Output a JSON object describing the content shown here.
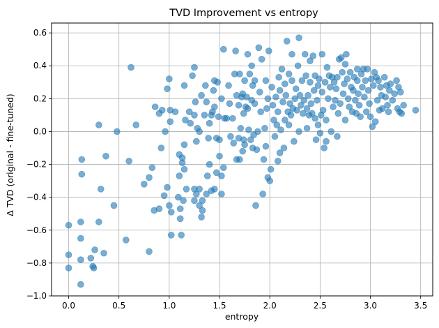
{
  "chart_data": {
    "type": "scatter",
    "title": "TVD Improvement vs entropy",
    "xlabel": "entropy",
    "ylabel": "Δ TVD (original - fine-tuned)",
    "xlim": [
      -0.17,
      3.62
    ],
    "ylim": [
      -1.0,
      0.66
    ],
    "xticks": [
      0.0,
      0.5,
      1.0,
      1.5,
      2.0,
      2.5,
      3.0,
      3.5
    ],
    "xtick_labels": [
      "0.0",
      "0.5",
      "1.0",
      "1.5",
      "2.0",
      "2.5",
      "3.0",
      "3.5"
    ],
    "yticks": [
      -1.0,
      -0.8,
      -0.6,
      -0.4,
      -0.2,
      0.0,
      0.2,
      0.4,
      0.6
    ],
    "ytick_labels": [
      "−1.0",
      "−0.8",
      "−0.6",
      "−0.4",
      "−0.2",
      "0.0",
      "0.2",
      "0.4",
      "0.6"
    ],
    "grid": true,
    "marker_color": "#1f77b4",
    "marker_alpha": 0.6,
    "points": [
      [
        0.0,
        -0.57
      ],
      [
        0.0,
        -0.75
      ],
      [
        0.0,
        -0.83
      ],
      [
        0.12,
        -0.93
      ],
      [
        0.12,
        -0.78
      ],
      [
        0.12,
        -0.65
      ],
      [
        0.12,
        -0.55
      ],
      [
        0.13,
        -0.26
      ],
      [
        0.13,
        -0.17
      ],
      [
        0.22,
        -0.77
      ],
      [
        0.24,
        -0.82
      ],
      [
        0.25,
        -0.83
      ],
      [
        0.26,
        -0.72
      ],
      [
        0.3,
        -0.55
      ],
      [
        0.3,
        0.04
      ],
      [
        0.32,
        -0.35
      ],
      [
        0.35,
        -0.74
      ],
      [
        0.37,
        -0.15
      ],
      [
        0.45,
        -0.45
      ],
      [
        0.48,
        0.0
      ],
      [
        0.57,
        -0.66
      ],
      [
        0.6,
        -0.18
      ],
      [
        0.62,
        0.39
      ],
      [
        0.67,
        0.04
      ],
      [
        0.75,
        -0.32
      ],
      [
        0.8,
        -0.28
      ],
      [
        0.8,
        -0.73
      ],
      [
        0.83,
        -0.22
      ],
      [
        0.85,
        -0.48
      ],
      [
        0.86,
        0.15
      ],
      [
        0.9,
        -0.47
      ],
      [
        0.9,
        0.11
      ],
      [
        0.92,
        -0.1
      ],
      [
        0.93,
        0.13
      ],
      [
        0.95,
        -0.39
      ],
      [
        0.96,
        0.0
      ],
      [
        0.98,
        -0.34
      ],
      [
        0.98,
        0.26
      ],
      [
        1.0,
        -0.45
      ],
      [
        1.0,
        0.32
      ],
      [
        1.01,
        0.13
      ],
      [
        1.01,
        0.06
      ],
      [
        1.02,
        -0.63
      ],
      [
        1.02,
        -0.49
      ],
      [
        1.06,
        0.12
      ],
      [
        1.09,
        -0.4
      ],
      [
        1.1,
        -0.14
      ],
      [
        1.1,
        -0.27
      ],
      [
        1.11,
        -0.53
      ],
      [
        1.11,
        -0.47
      ],
      [
        1.12,
        -0.63
      ],
      [
        1.13,
        -0.16
      ],
      [
        1.13,
        -0.19
      ],
      [
        1.14,
        -0.42
      ],
      [
        1.15,
        0.28
      ],
      [
        1.15,
        -0.23
      ],
      [
        1.15,
        -0.08
      ],
      [
        1.16,
        0.07
      ],
      [
        1.17,
        -0.35
      ],
      [
        1.2,
        0.12
      ],
      [
        1.21,
        0.05
      ],
      [
        1.23,
        0.34
      ],
      [
        1.25,
        -0.42
      ],
      [
        1.25,
        0.39
      ],
      [
        1.25,
        -0.35
      ],
      [
        1.25,
        0.1
      ],
      [
        1.26,
        0.18
      ],
      [
        1.27,
        -0.06
      ],
      [
        1.27,
        -0.38
      ],
      [
        1.28,
        0.02
      ],
      [
        1.3,
        0.0
      ],
      [
        1.3,
        -0.35
      ],
      [
        1.3,
        -0.45
      ],
      [
        1.32,
        -0.52
      ],
      [
        1.32,
        0.22
      ],
      [
        1.33,
        -0.48
      ],
      [
        1.33,
        -0.42
      ],
      [
        1.35,
        0.1
      ],
      [
        1.36,
        0.28
      ],
      [
        1.37,
        -0.38
      ],
      [
        1.37,
        0.18
      ],
      [
        1.38,
        -0.27
      ],
      [
        1.39,
        -0.04
      ],
      [
        1.4,
        0.05
      ],
      [
        1.4,
        -0.2
      ],
      [
        1.42,
        -0.36
      ],
      [
        1.42,
        0.1
      ],
      [
        1.43,
        0.12
      ],
      [
        1.44,
        0.25
      ],
      [
        1.45,
        -0.35
      ],
      [
        1.45,
        0.15
      ],
      [
        1.45,
        0.31
      ],
      [
        1.47,
        -0.04
      ],
      [
        1.47,
        -0.25
      ],
      [
        1.48,
        0.3
      ],
      [
        1.49,
        0.09
      ],
      [
        1.5,
        -0.15
      ],
      [
        1.5,
        -0.05
      ],
      [
        1.52,
        -0.38
      ],
      [
        1.52,
        0.2
      ],
      [
        1.52,
        -0.27
      ],
      [
        1.54,
        0.5
      ],
      [
        1.54,
        -0.22
      ],
      [
        1.55,
        0.08
      ],
      [
        1.57,
        0.08
      ],
      [
        1.59,
        0.28
      ],
      [
        1.6,
        0.17
      ],
      [
        1.61,
        -0.03
      ],
      [
        1.63,
        0.08
      ],
      [
        1.64,
        -0.07
      ],
      [
        1.65,
        0.35
      ],
      [
        1.66,
        0.49
      ],
      [
        1.67,
        0.22
      ],
      [
        1.67,
        -0.17
      ],
      [
        1.69,
        0.16
      ],
      [
        1.69,
        -0.04
      ],
      [
        1.7,
        -0.17
      ],
      [
        1.7,
        0.35
      ],
      [
        1.71,
        0.02
      ],
      [
        1.72,
        0.21
      ],
      [
        1.73,
        0.23
      ],
      [
        1.73,
        -0.12
      ],
      [
        1.74,
        -0.05
      ],
      [
        1.74,
        0.11
      ],
      [
        1.75,
        0.31
      ],
      [
        1.75,
        -0.08
      ],
      [
        1.76,
        0.15
      ],
      [
        1.77,
        0.21
      ],
      [
        1.78,
        0.14
      ],
      [
        1.78,
        0.47
      ],
      [
        1.79,
        0.01
      ],
      [
        1.8,
        0.35
      ],
      [
        1.81,
        -0.05
      ],
      [
        1.82,
        0.19
      ],
      [
        1.82,
        0.4
      ],
      [
        1.83,
        -0.1
      ],
      [
        1.83,
        0.28
      ],
      [
        1.84,
        -0.02
      ],
      [
        1.85,
        0.17
      ],
      [
        1.85,
        0.31
      ],
      [
        1.86,
        -0.45
      ],
      [
        1.87,
        -0.11
      ],
      [
        1.88,
        0.0
      ],
      [
        1.89,
        0.51
      ],
      [
        1.9,
        0.24
      ],
      [
        1.91,
        0.12
      ],
      [
        1.92,
        0.44
      ],
      [
        1.93,
        -0.38
      ],
      [
        1.94,
        -0.17
      ],
      [
        1.95,
        0.02
      ],
      [
        1.96,
        -0.09
      ],
      [
        1.96,
        0.31
      ],
      [
        1.97,
        0.14
      ],
      [
        1.98,
        0.2
      ],
      [
        1.98,
        -0.28
      ],
      [
        1.99,
        0.49
      ],
      [
        2.0,
        -0.3
      ],
      [
        2.01,
        -0.23
      ],
      [
        2.02,
        0.27
      ],
      [
        2.03,
        0.16
      ],
      [
        2.04,
        0.07
      ],
      [
        2.05,
        -0.03
      ],
      [
        2.06,
        0.21
      ],
      [
        2.07,
        0.04
      ],
      [
        2.08,
        0.12
      ],
      [
        2.08,
        -0.18
      ],
      [
        2.09,
        0.33
      ],
      [
        2.1,
        -0.13
      ],
      [
        2.1,
        0.25
      ],
      [
        2.11,
        0.01
      ],
      [
        2.12,
        0.38
      ],
      [
        2.13,
        0.18
      ],
      [
        2.14,
        -0.1
      ],
      [
        2.15,
        0.07
      ],
      [
        2.15,
        0.29
      ],
      [
        2.16,
        0.22
      ],
      [
        2.17,
        0.55
      ],
      [
        2.18,
        0.12
      ],
      [
        2.19,
        0.35
      ],
      [
        2.19,
        0.04
      ],
      [
        2.2,
        0.17
      ],
      [
        2.21,
        0.1
      ],
      [
        2.22,
        0.31
      ],
      [
        2.22,
        0.47
      ],
      [
        2.23,
        0.14
      ],
      [
        2.24,
        -0.06
      ],
      [
        2.25,
        0.2
      ],
      [
        2.26,
        0.26
      ],
      [
        2.27,
        0.13
      ],
      [
        2.28,
        0.4
      ],
      [
        2.29,
        0.0
      ],
      [
        2.29,
        0.57
      ],
      [
        2.3,
        0.22
      ],
      [
        2.31,
        0.16
      ],
      [
        2.32,
        0.31
      ],
      [
        2.33,
        0.11
      ],
      [
        2.34,
        0.19
      ],
      [
        2.35,
        0.47
      ],
      [
        2.36,
        0.34
      ],
      [
        2.37,
        0.14
      ],
      [
        2.37,
        0.02
      ],
      [
        2.38,
        0.22
      ],
      [
        2.39,
        0.1
      ],
      [
        2.4,
        0.43
      ],
      [
        2.4,
        0.3
      ],
      [
        2.41,
        0.17
      ],
      [
        2.42,
        0.11
      ],
      [
        2.43,
        0.46
      ],
      [
        2.44,
        0.25
      ],
      [
        2.45,
        0.34
      ],
      [
        2.45,
        0.08
      ],
      [
        2.46,
        -0.05
      ],
      [
        2.47,
        0.19
      ],
      [
        2.48,
        0.04
      ],
      [
        2.48,
        0.28
      ],
      [
        2.49,
        0.32
      ],
      [
        2.5,
        -0.01
      ],
      [
        2.51,
        0.1
      ],
      [
        2.52,
        0.47
      ],
      [
        2.52,
        0.24
      ],
      [
        2.53,
        0.13
      ],
      [
        2.54,
        -0.1
      ],
      [
        2.55,
        0.3
      ],
      [
        2.56,
        0.07
      ],
      [
        2.56,
        -0.06
      ],
      [
        2.57,
        0.39
      ],
      [
        2.58,
        0.2
      ],
      [
        2.59,
        0.34
      ],
      [
        2.6,
        0.27
      ],
      [
        2.61,
        0.0
      ],
      [
        2.62,
        0.33
      ],
      [
        2.63,
        0.15
      ],
      [
        2.64,
        0.3
      ],
      [
        2.65,
        0.19
      ],
      [
        2.66,
        0.26
      ],
      [
        2.67,
        0.33
      ],
      [
        2.67,
        -0.03
      ],
      [
        2.68,
        0.11
      ],
      [
        2.69,
        0.44
      ],
      [
        2.7,
        0.17
      ],
      [
        2.71,
        0.45
      ],
      [
        2.72,
        0.36
      ],
      [
        2.73,
        0.23
      ],
      [
        2.74,
        0.29
      ],
      [
        2.75,
        0.41
      ],
      [
        2.75,
        0.07
      ],
      [
        2.76,
        0.47
      ],
      [
        2.77,
        0.32
      ],
      [
        2.78,
        0.2
      ],
      [
        2.79,
        0.15
      ],
      [
        2.8,
        0.36
      ],
      [
        2.81,
        0.27
      ],
      [
        2.82,
        0.12
      ],
      [
        2.83,
        0.25
      ],
      [
        2.84,
        0.33
      ],
      [
        2.85,
        0.19
      ],
      [
        2.86,
        0.11
      ],
      [
        2.87,
        0.38
      ],
      [
        2.87,
        0.31
      ],
      [
        2.88,
        0.23
      ],
      [
        2.89,
        0.16
      ],
      [
        2.9,
        0.09
      ],
      [
        2.91,
        0.35
      ],
      [
        2.92,
        0.27
      ],
      [
        2.93,
        0.38
      ],
      [
        2.94,
        0.21
      ],
      [
        2.95,
        0.31
      ],
      [
        2.96,
        0.12
      ],
      [
        2.97,
        0.38
      ],
      [
        2.98,
        0.25
      ],
      [
        2.99,
        0.17
      ],
      [
        3.0,
        0.09
      ],
      [
        3.01,
        0.32
      ],
      [
        3.02,
        0.03
      ],
      [
        3.03,
        0.28
      ],
      [
        3.04,
        0.36
      ],
      [
        3.05,
        0.06
      ],
      [
        3.06,
        0.33
      ],
      [
        3.07,
        0.19
      ],
      [
        3.08,
        0.31
      ],
      [
        3.09,
        0.13
      ],
      [
        3.1,
        0.27
      ],
      [
        3.11,
        0.22
      ],
      [
        3.12,
        0.14
      ],
      [
        3.14,
        0.33
      ],
      [
        3.15,
        0.21
      ],
      [
        3.16,
        0.28
      ],
      [
        3.17,
        0.16
      ],
      [
        3.18,
        0.12
      ],
      [
        3.19,
        0.25
      ],
      [
        3.2,
        0.29
      ],
      [
        3.22,
        0.19
      ],
      [
        3.24,
        0.23
      ],
      [
        3.26,
        0.31
      ],
      [
        3.27,
        0.14
      ],
      [
        3.28,
        0.27
      ],
      [
        3.29,
        0.12
      ],
      [
        3.3,
        0.24
      ],
      [
        3.31,
        0.11
      ],
      [
        3.33,
        0.16
      ],
      [
        3.45,
        0.13
      ]
    ]
  }
}
